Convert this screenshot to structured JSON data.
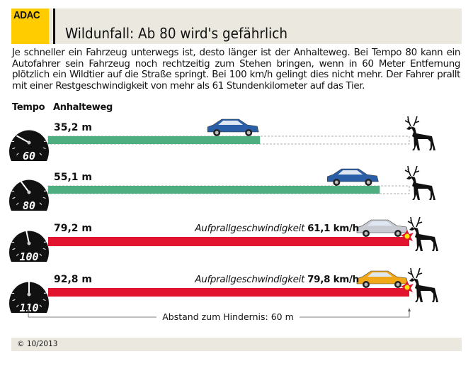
{
  "logo": "ADAC",
  "title": "Wildunfall: Ab 80 wird's gefährlich",
  "intro": "Je schneller ein Fahrzeug unterwegs ist, desto länger ist der Anhalteweg. Bei Tempo 80 kann ein Autofahrer sein Fahrzeug noch rechtzeitig zum Stehen bringen, wenn in 60 Meter Entfernung plötzlich ein Wildtier auf die Straße springt. Bei 100 km/h gelingt dies nicht mehr. Der Fahrer prallt mit einer Restgeschwindigkeit von mehr als 61 Stundenkilometer auf das Tier.",
  "columns": {
    "tempo": "Tempo",
    "distance": "Anhalteweg"
  },
  "footer": "© 10/2013",
  "colors": {
    "safe": "#4fae80",
    "crash": "#e2132f",
    "band": "#ebe8e0",
    "logo": "#ffcc00"
  },
  "chart_data": {
    "type": "bar",
    "orientation": "horizontal",
    "categories": [
      "60",
      "80",
      "100",
      "110"
    ],
    "values": [
      35.2,
      55.1,
      79.2,
      92.8
    ],
    "value_labels": [
      "35,2 m",
      "55,1 m",
      "79,2 m",
      "92,8 m"
    ],
    "unit": "m",
    "obstacle_distance": 60,
    "obstacle_label": "Abstand zum Hindernis: 60 m",
    "impact": [
      null,
      null,
      {
        "label": "Aufprallgeschwindigkeit",
        "value": "61,1 km/h"
      },
      {
        "label": "Aufprallgeschwindigkeit",
        "value": "79,8 km/h"
      }
    ],
    "car_colors": [
      "#2a5fa8",
      "#2a5fa8",
      "#c8ccd2",
      "#f0a818"
    ]
  }
}
